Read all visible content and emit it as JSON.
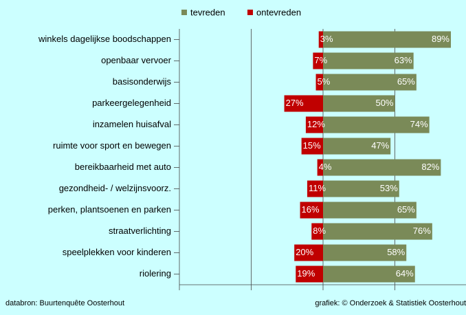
{
  "chart_data": {
    "type": "diverging-bar",
    "categories": [
      "winkels dagelijkse boodschappen",
      "openbaar vervoer",
      "basisonderwijs",
      "parkeergelegenheid",
      "inzamelen huisafval",
      "ruimte voor sport en bewegen",
      "bereikbaarheid met auto",
      "gezondheid- / welzijnsvoorz.",
      "perken, plantsoenen en parken",
      "straatverlichting",
      "speelplekken voor kinderen",
      "riolering"
    ],
    "series": [
      {
        "name": "tevreden",
        "color": "#7a8a58",
        "values": [
          89,
          63,
          65,
          50,
          74,
          47,
          82,
          53,
          65,
          76,
          58,
          64
        ],
        "value_labels": [
          "89%",
          "63%",
          "65%",
          "50%",
          "74%",
          "47%",
          "82%",
          "53%",
          "65%",
          "76%",
          "58%",
          "64%"
        ]
      },
      {
        "name": "ontevreden",
        "color": "#c00000",
        "direction": "left",
        "values": [
          3,
          7,
          5,
          27,
          12,
          15,
          4,
          11,
          16,
          8,
          20,
          19
        ],
        "value_labels": [
          "3%",
          "7%",
          "5%",
          "27%",
          "12%",
          "15%",
          "4%",
          "11%",
          "16%",
          "8%",
          "20%",
          "19%"
        ]
      }
    ],
    "xlim": [
      -100,
      100
    ],
    "xticks": [
      -100,
      -50,
      0,
      50,
      100
    ],
    "grid": true,
    "footer_left": "databron: Buurtenquête Oosterhout",
    "footer_right": "grafiek: © Onderzoek & Statistiek Oosterhout"
  }
}
